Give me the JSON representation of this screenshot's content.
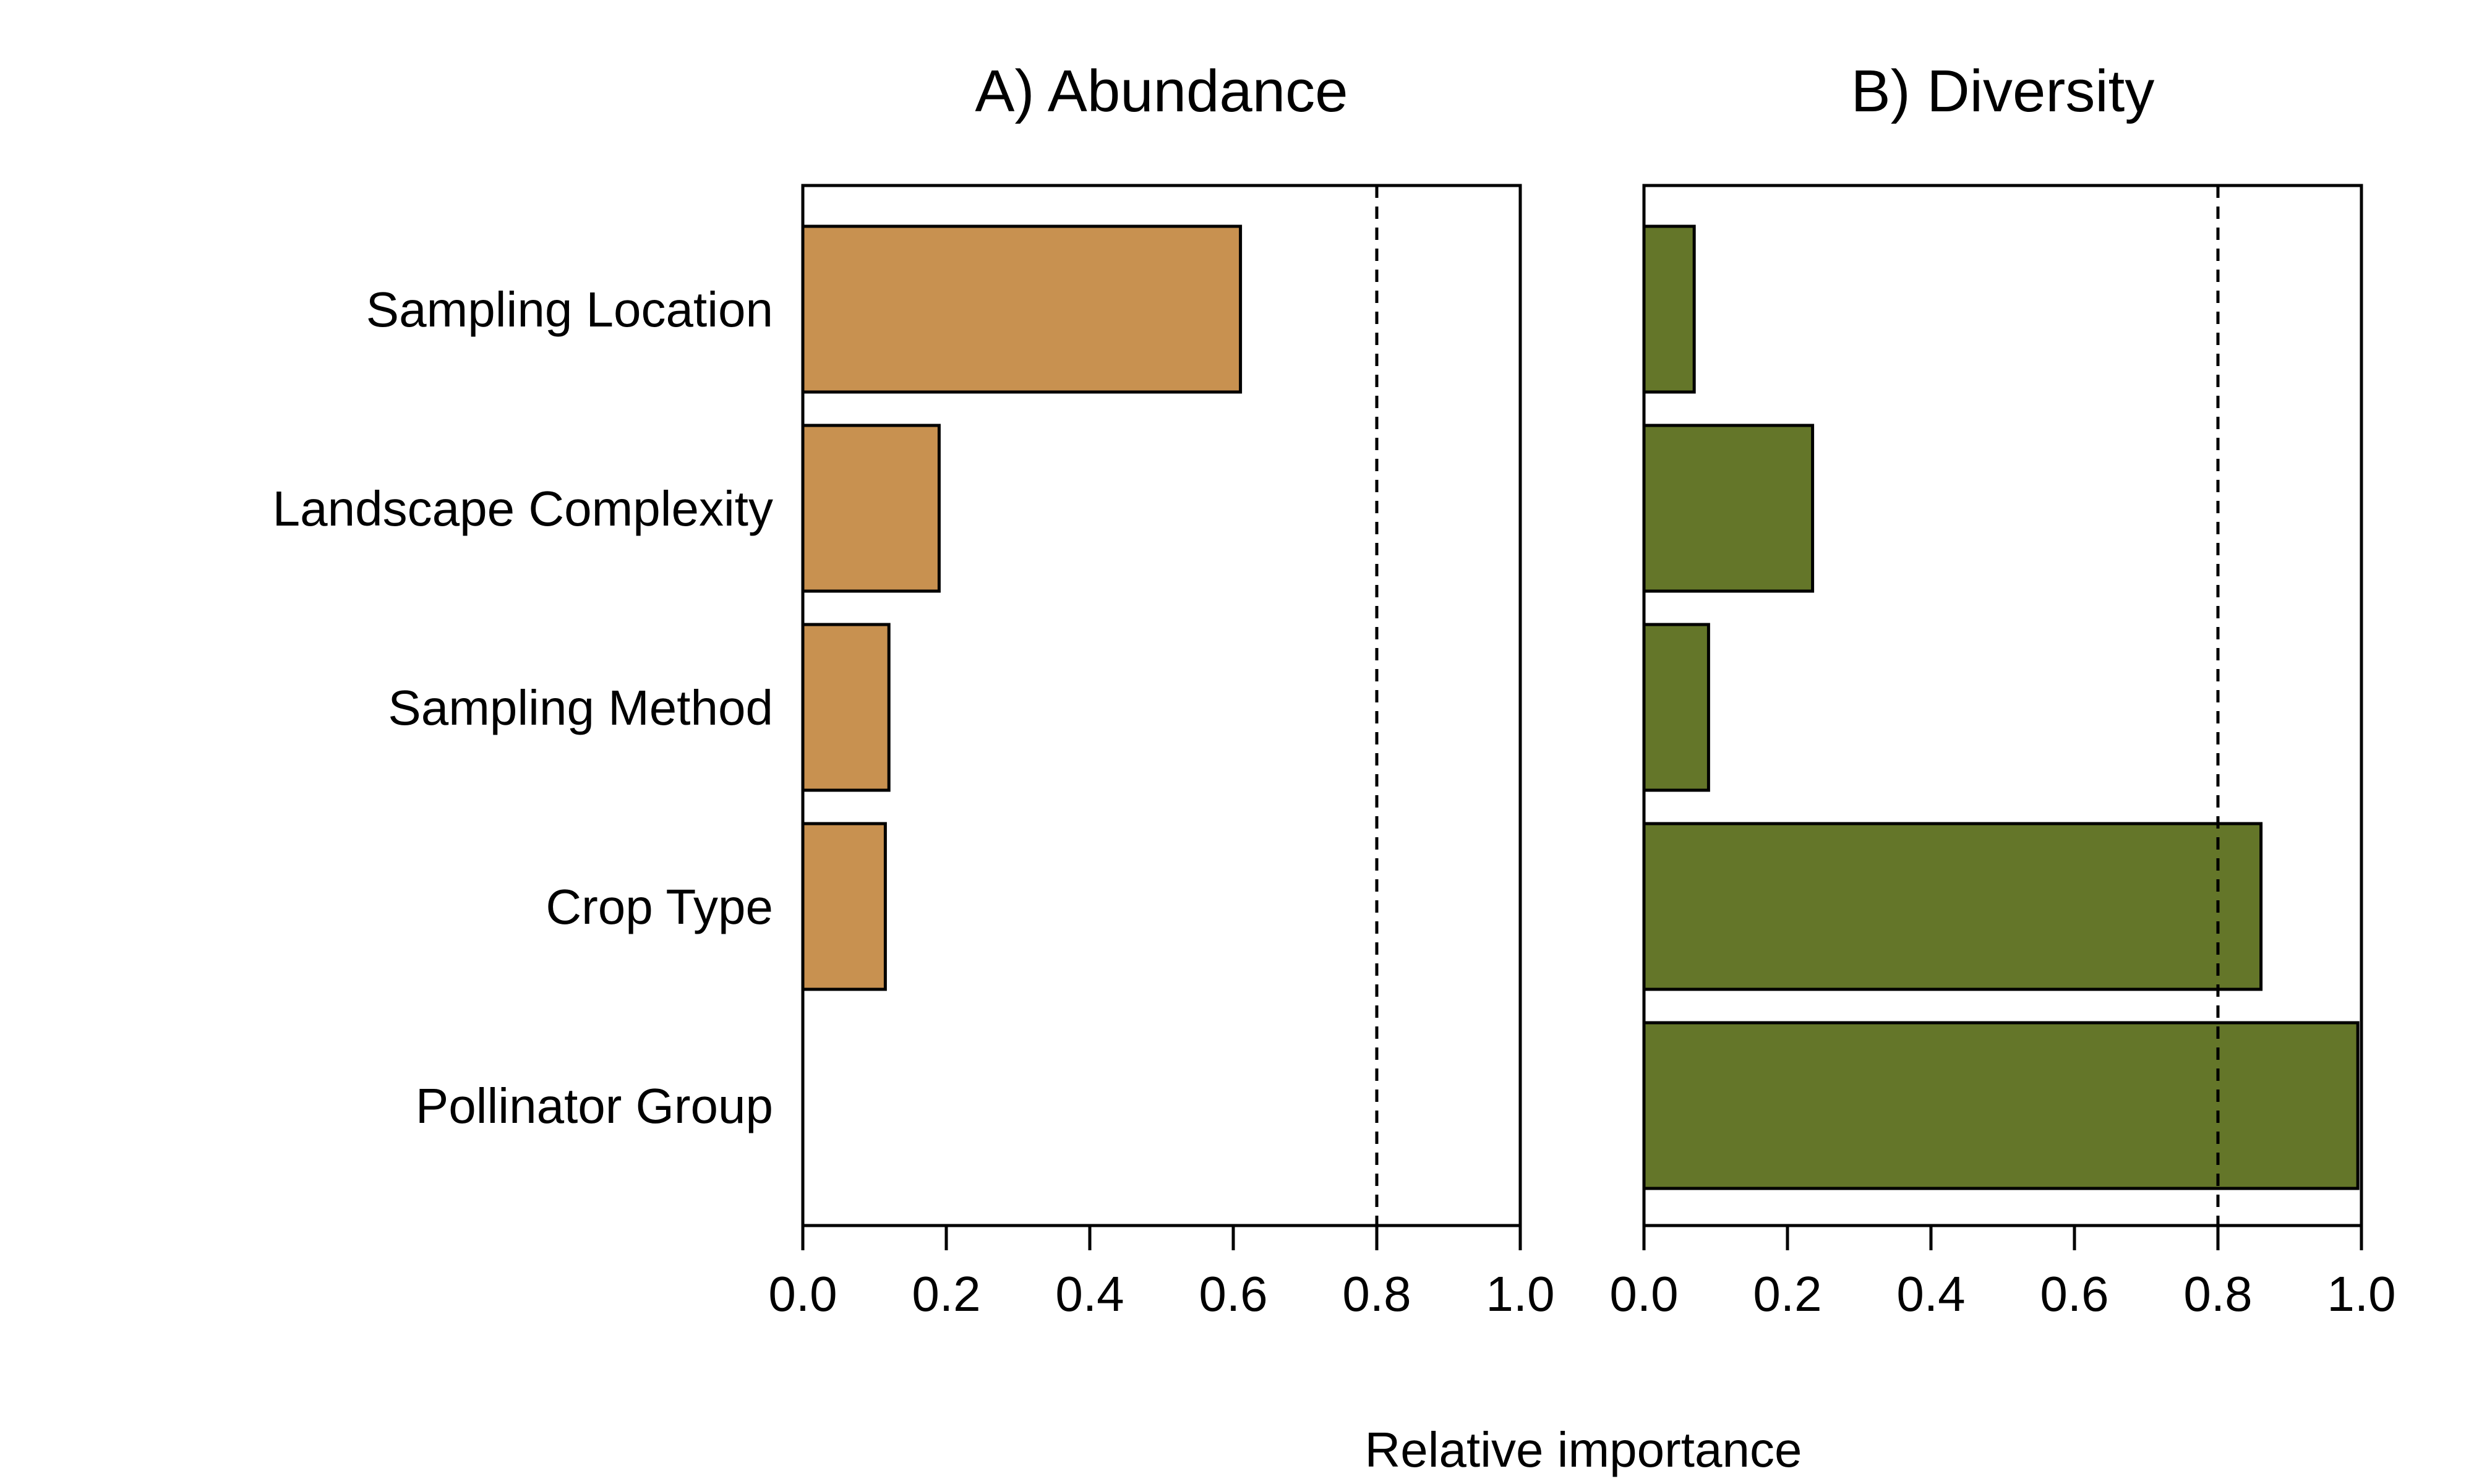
{
  "chart_data": [
    {
      "type": "bar",
      "orientation": "horizontal",
      "title": "A) Abundance",
      "categories": [
        "Sampling Location",
        "Landscape Complexity",
        "Sampling Method",
        "Crop Type",
        "Pollinator Group"
      ],
      "values": [
        0.61,
        0.19,
        0.12,
        0.115,
        0.0
      ],
      "color": "#C89150",
      "xlim": [
        0,
        1
      ],
      "xticks": [
        "0.0",
        "0.2",
        "0.4",
        "0.6",
        "0.8",
        "1.0"
      ],
      "reference_line": 0.8,
      "grid": false
    },
    {
      "type": "bar",
      "orientation": "horizontal",
      "title": "B) Diversity",
      "categories": [
        "Sampling Location",
        "Landscape Complexity",
        "Sampling Method",
        "Crop Type",
        "Pollinator Group"
      ],
      "values": [
        0.07,
        0.235,
        0.09,
        0.86,
        0.995
      ],
      "color": "#647629",
      "xlim": [
        0,
        1
      ],
      "xticks": [
        "0.0",
        "0.2",
        "0.4",
        "0.6",
        "0.8",
        "1.0"
      ],
      "reference_line": 0.8,
      "grid": false
    }
  ],
  "xlabel": "Relative importance"
}
